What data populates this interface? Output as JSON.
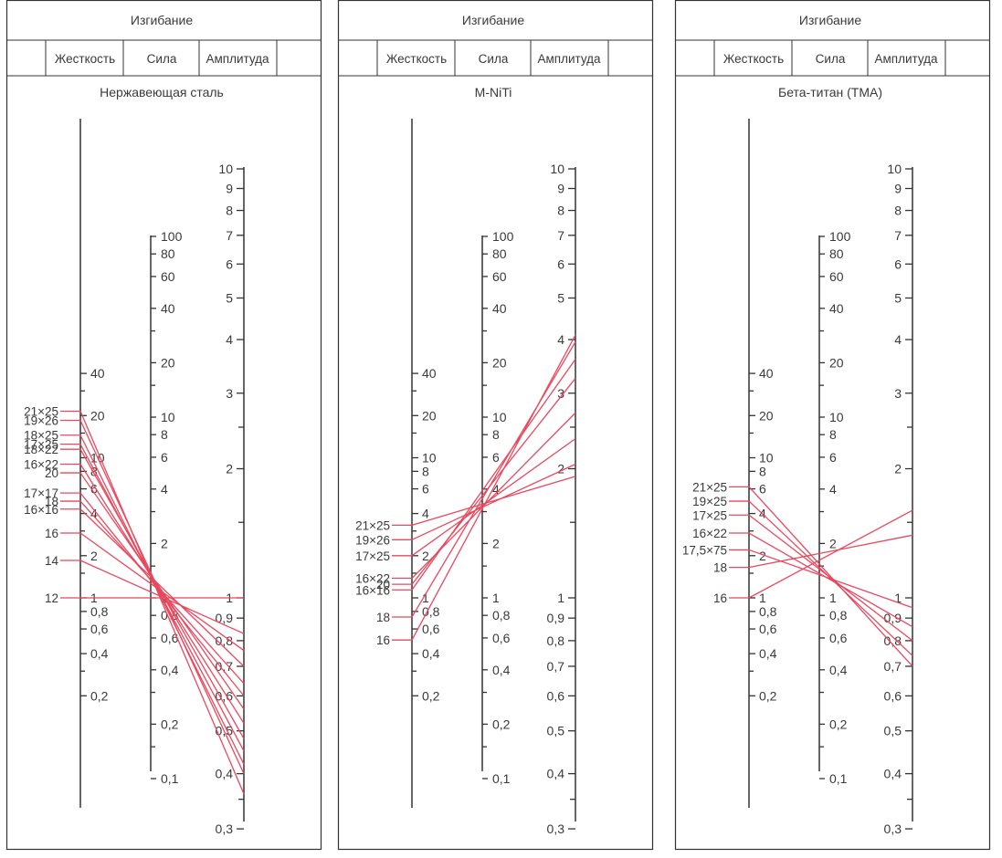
{
  "colors": {
    "line": "#e8485e",
    "ink": "#333333",
    "background": "#ffffff"
  },
  "chart_data": [
    {
      "type": "nomogram",
      "header": "Изгибание",
      "columns": [
        "Жесткость",
        "Сила",
        "Амплитуда"
      ],
      "title": "Нержавеющая сталь",
      "scales": {
        "stiffness": {
          "ticks": [
            "40",
            "20",
            "10",
            "8",
            "6",
            "4",
            "2",
            "1",
            "0,8",
            "0,6",
            "0,4",
            "0,2"
          ]
        },
        "force": {
          "ticks": [
            "100",
            "80",
            "60",
            "40",
            "20",
            "10",
            "8",
            "6",
            "4",
            "2",
            "1",
            "0,8",
            "0,6",
            "0,4",
            "0,2",
            "0,1"
          ]
        },
        "amplitude": {
          "ticks": [
            "10",
            "9",
            "8",
            "7",
            "6",
            "5",
            "4",
            "3",
            "2",
            "1",
            "0,9",
            "0,8",
            "0,7",
            "0,6",
            "0,5",
            "0,4",
            "0,3"
          ]
        }
      },
      "wires": [
        {
          "name": "21×25",
          "stiffness": 21.5,
          "amplitude": 0.36
        },
        {
          "name": "19×26",
          "stiffness": 18.5,
          "amplitude": 0.4
        },
        {
          "name": "18×25",
          "stiffness": 14.5,
          "amplitude": 0.42
        },
        {
          "name": "17×25",
          "stiffness": 12.5,
          "amplitude": 0.45
        },
        {
          "name": "18×22",
          "stiffness": 11.5,
          "amplitude": 0.48
        },
        {
          "name": "16×22",
          "stiffness": 9,
          "amplitude": 0.52
        },
        {
          "name": "20",
          "stiffness": 7.8,
          "amplitude": 0.56
        },
        {
          "name": "17×17",
          "stiffness": 5.6,
          "amplitude": 0.6
        },
        {
          "name": "18",
          "stiffness": 4.9,
          "amplitude": 0.64
        },
        {
          "name": "16×16",
          "stiffness": 4.3,
          "amplitude": 0.7
        },
        {
          "name": "16",
          "stiffness": 2.9,
          "amplitude": 0.76
        },
        {
          "name": "14",
          "stiffness": 1.85,
          "amplitude": 0.83
        },
        {
          "name": "12",
          "stiffness": 1,
          "amplitude": 1
        }
      ]
    },
    {
      "type": "nomogram",
      "header": "Изгибание",
      "columns": [
        "Жесткость",
        "Сила",
        "Амплитуда"
      ],
      "title": "M-NiTi",
      "scales": {
        "stiffness": {
          "ticks": [
            "40",
            "20",
            "10",
            "8",
            "6",
            "4",
            "2",
            "1",
            "0,8",
            "0,6",
            "0,4",
            "0,2"
          ]
        },
        "force": {
          "ticks": [
            "100",
            "80",
            "60",
            "40",
            "20",
            "10",
            "8",
            "6",
            "4",
            "2",
            "1",
            "0,8",
            "0,6",
            "0,4",
            "0,2",
            "0,1"
          ]
        },
        "amplitude": {
          "ticks": [
            "10",
            "9",
            "8",
            "7",
            "6",
            "5",
            "4",
            "3",
            "2",
            "1",
            "0,9",
            "0,8",
            "0,7",
            "0,6",
            "0,5",
            "0,4",
            "0,3"
          ]
        }
      },
      "wires": [
        {
          "name": "21×25",
          "stiffness": 3.3,
          "amplitude": 1.92
        },
        {
          "name": "19×26",
          "stiffness": 2.6,
          "amplitude": 2.05
        },
        {
          "name": "17×25",
          "stiffness": 2,
          "amplitude": 2.35
        },
        {
          "name": "16×22",
          "stiffness": 1.38,
          "amplitude": 2.7
        },
        {
          "name": "20",
          "stiffness": 1.25,
          "amplitude": 3.25
        },
        {
          "name": "16×16",
          "stiffness": 1.14,
          "amplitude": 3.6
        },
        {
          "name": "18",
          "stiffness": 0.73,
          "amplitude": 3.95
        },
        {
          "name": "16",
          "stiffness": 0.5,
          "amplitude": 4.1
        }
      ]
    },
    {
      "type": "nomogram",
      "header": "Изгибание",
      "columns": [
        "Жесткость",
        "Сила",
        "Амплитуда"
      ],
      "title": "Бета-титан (ТМА)",
      "scales": {
        "stiffness": {
          "ticks": [
            "40",
            "20",
            "10",
            "8",
            "6",
            "4",
            "2",
            "1",
            "0,8",
            "0,6",
            "0,4",
            "0,2"
          ]
        },
        "force": {
          "ticks": [
            "100",
            "80",
            "60",
            "40",
            "20",
            "10",
            "8",
            "6",
            "4",
            "2",
            "1",
            "0,8",
            "0,6",
            "0,4",
            "0,2",
            "0,1"
          ]
        },
        "amplitude": {
          "ticks": [
            "10",
            "9",
            "8",
            "7",
            "6",
            "5",
            "4",
            "3",
            "2",
            "1",
            "0,9",
            "0,8",
            "0,7",
            "0,6",
            "0,5",
            "0,4",
            "0,3"
          ]
        }
      },
      "wires": [
        {
          "name": "21×25",
          "stiffness": 6.2,
          "amplitude": 0.7
        },
        {
          "name": "19×25",
          "stiffness": 4.9,
          "amplitude": 0.74
        },
        {
          "name": "17×25",
          "stiffness": 3.9,
          "amplitude": 0.8
        },
        {
          "name": "16×22",
          "stiffness": 2.9,
          "amplitude": 0.86
        },
        {
          "name": "17,5×75",
          "stiffness": 2.2,
          "amplitude": 0.95
        },
        {
          "name": "18",
          "stiffness": 1.65,
          "amplitude": 1.4
        },
        {
          "name": "16",
          "stiffness": 1,
          "amplitude": 1.6
        }
      ]
    }
  ]
}
